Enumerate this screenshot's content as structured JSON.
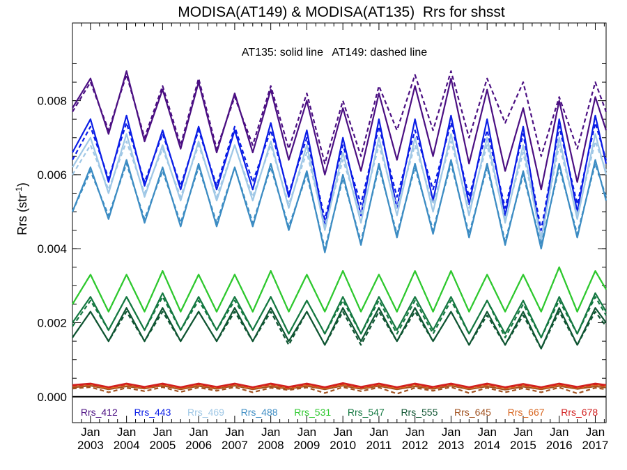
{
  "chart_data": {
    "type": "line",
    "title": "MODISA(AT149) & MODISA(AT135)  Rrs for shsst",
    "annotation": "AT135: solid line   AT149: dashed line",
    "ylabel": "Rrs (str",
    "ylabel_sup": "-1",
    "ylabel_end": ")",
    "ylim": [
      -0.0007,
      0.0101
    ],
    "xlim": [
      2002.5,
      2017.3
    ],
    "yticks": [
      {
        "value": 0.0,
        "label": "0.000"
      },
      {
        "value": 0.002,
        "label": "0.002"
      },
      {
        "value": 0.004,
        "label": "0.004"
      },
      {
        "value": 0.006,
        "label": "0.006"
      },
      {
        "value": 0.008,
        "label": "0.008"
      }
    ],
    "xticks": [
      {
        "value": 2003,
        "month": "Jan",
        "year": "2003"
      },
      {
        "value": 2004,
        "month": "Jan",
        "year": "2004"
      },
      {
        "value": 2005,
        "month": "Jan",
        "year": "2005"
      },
      {
        "value": 2006,
        "month": "Jan",
        "year": "2006"
      },
      {
        "value": 2007,
        "month": "Jan",
        "year": "2007"
      },
      {
        "value": 2008,
        "month": "Jan",
        "year": "2008"
      },
      {
        "value": 2009,
        "month": "Jan",
        "year": "2009"
      },
      {
        "value": 2010,
        "month": "Jan",
        "year": "2010"
      },
      {
        "value": 2011,
        "month": "Jan",
        "year": "2011"
      },
      {
        "value": 2012,
        "month": "Jan",
        "year": "2012"
      },
      {
        "value": 2013,
        "month": "Jan",
        "year": "2013"
      },
      {
        "value": 2014,
        "month": "Jan",
        "year": "2014"
      },
      {
        "value": 2015,
        "month": "Jan",
        "year": "2015"
      },
      {
        "value": 2016,
        "month": "Jan",
        "year": "2016"
      },
      {
        "value": 2017,
        "month": "Jan",
        "year": "2017"
      }
    ],
    "grid": false,
    "legend_position": "bottom",
    "x": [
      2002.5,
      2003.0,
      2003.5,
      2004.0,
      2004.5,
      2005.0,
      2005.5,
      2006.0,
      2006.5,
      2007.0,
      2007.5,
      2008.0,
      2008.5,
      2009.0,
      2009.5,
      2010.0,
      2010.5,
      2011.0,
      2011.5,
      2012.0,
      2012.5,
      2013.0,
      2013.5,
      2014.0,
      2014.5,
      2015.0,
      2015.5,
      2016.0,
      2016.5,
      2017.0,
      2017.3
    ],
    "series": [
      {
        "name": "Rrs_412",
        "color": "#4b0f82",
        "at135": [
          0.0078,
          0.0086,
          0.0071,
          0.0088,
          0.0069,
          0.0083,
          0.0067,
          0.0085,
          0.0066,
          0.0082,
          0.0066,
          0.0083,
          0.0064,
          0.008,
          0.006,
          0.0078,
          0.0061,
          0.0082,
          0.0064,
          0.0084,
          0.0065,
          0.0086,
          0.0063,
          0.0083,
          0.0061,
          0.0078,
          0.0056,
          0.008,
          0.0058,
          0.0081,
          0.0072
        ],
        "at149": [
          0.0077,
          0.0085,
          0.0072,
          0.0087,
          0.007,
          0.0084,
          0.0068,
          0.0086,
          0.0067,
          0.0081,
          0.0068,
          0.0084,
          0.0067,
          0.0082,
          0.0063,
          0.008,
          0.0065,
          0.0084,
          0.0072,
          0.0087,
          0.0072,
          0.0088,
          0.007,
          0.0086,
          0.0074,
          0.0085,
          0.0065,
          0.0081,
          0.0067,
          0.0085,
          0.0077
        ]
      },
      {
        "name": "Rrs_443",
        "color": "#0a1de6",
        "at135": [
          0.0066,
          0.0075,
          0.0058,
          0.0076,
          0.0057,
          0.0072,
          0.0056,
          0.0073,
          0.0056,
          0.0072,
          0.0056,
          0.0074,
          0.0054,
          0.0072,
          0.0046,
          0.007,
          0.0049,
          0.0075,
          0.0051,
          0.0075,
          0.0053,
          0.0076,
          0.0052,
          0.0075,
          0.0049,
          0.0073,
          0.0042,
          0.0075,
          0.005,
          0.0076,
          0.0063
        ],
        "at149": [
          0.0064,
          0.0073,
          0.0059,
          0.0074,
          0.0058,
          0.0071,
          0.0057,
          0.0072,
          0.0057,
          0.0073,
          0.0058,
          0.0072,
          0.0055,
          0.007,
          0.0048,
          0.0068,
          0.0052,
          0.0073,
          0.0054,
          0.0072,
          0.0056,
          0.0074,
          0.0054,
          0.0072,
          0.0051,
          0.0071,
          0.0045,
          0.0073,
          0.0052,
          0.0074,
          0.0064
        ]
      },
      {
        "name": "Rrs_469",
        "color": "#a0c8e6",
        "at135": [
          0.0062,
          0.007,
          0.0055,
          0.0071,
          0.0054,
          0.0068,
          0.0053,
          0.0069,
          0.0053,
          0.0068,
          0.0053,
          0.0069,
          0.0051,
          0.0068,
          0.0045,
          0.0066,
          0.0047,
          0.007,
          0.0049,
          0.007,
          0.005,
          0.0071,
          0.0049,
          0.007,
          0.0047,
          0.0068,
          0.0042,
          0.007,
          0.0048,
          0.0071,
          0.006
        ],
        "at149": [
          0.006,
          0.0068,
          0.0056,
          0.0069,
          0.0055,
          0.0067,
          0.0054,
          0.0068,
          0.0054,
          0.0068,
          0.0054,
          0.0068,
          0.0052,
          0.0066,
          0.0046,
          0.0064,
          0.0049,
          0.0068,
          0.0051,
          0.0068,
          0.0052,
          0.0069,
          0.0051,
          0.0068,
          0.0048,
          0.0066,
          0.0043,
          0.0068,
          0.0049,
          0.0069,
          0.0061
        ]
      },
      {
        "name": "Rrs_488",
        "color": "#3c8cc3",
        "at135": [
          0.005,
          0.0062,
          0.0048,
          0.0064,
          0.0047,
          0.0062,
          0.0046,
          0.0063,
          0.0046,
          0.0062,
          0.0046,
          0.0063,
          0.0045,
          0.0061,
          0.0039,
          0.006,
          0.0041,
          0.0063,
          0.0043,
          0.0063,
          0.0044,
          0.0064,
          0.0043,
          0.0063,
          0.0041,
          0.0061,
          0.004,
          0.0063,
          0.0043,
          0.0064,
          0.0053
        ],
        "at149": [
          0.005,
          0.0061,
          0.0049,
          0.0063,
          0.0048,
          0.0061,
          0.0047,
          0.0062,
          0.0047,
          0.0062,
          0.0047,
          0.0062,
          0.0046,
          0.006,
          0.004,
          0.0059,
          0.0042,
          0.0062,
          0.0044,
          0.0062,
          0.0045,
          0.0063,
          0.0044,
          0.0062,
          0.0042,
          0.006,
          0.0041,
          0.0062,
          0.0044,
          0.0063,
          0.0054
        ]
      },
      {
        "name": "Rrs_531",
        "color": "#2ec82e",
        "at135": [
          0.0025,
          0.0033,
          0.0023,
          0.0033,
          0.0023,
          0.0034,
          0.0023,
          0.0033,
          0.0023,
          0.0033,
          0.0023,
          0.0034,
          0.0023,
          0.0033,
          0.0023,
          0.0034,
          0.0023,
          0.0033,
          0.0023,
          0.0034,
          0.0023,
          0.0034,
          0.0023,
          0.0033,
          0.0023,
          0.0033,
          0.0023,
          0.0035,
          0.0023,
          0.0034,
          0.0029
        ],
        "at149": [
          0.0025,
          0.0033,
          0.0023,
          0.0033,
          0.0023,
          0.0034,
          0.0023,
          0.0033,
          0.0023,
          0.0033,
          0.0023,
          0.0034,
          0.0023,
          0.0033,
          0.0023,
          0.0034,
          0.0023,
          0.0033,
          0.0023,
          0.0034,
          0.0023,
          0.0034,
          0.0023,
          0.0033,
          0.0023,
          0.0033,
          0.0023,
          0.0035,
          0.0023,
          0.0034,
          0.0029
        ]
      },
      {
        "name": "Rrs_547",
        "color": "#147841",
        "at135": [
          0.002,
          0.0027,
          0.0018,
          0.0027,
          0.0018,
          0.0028,
          0.0018,
          0.0027,
          0.0018,
          0.0027,
          0.0018,
          0.0027,
          0.0017,
          0.0026,
          0.0017,
          0.0027,
          0.0017,
          0.0027,
          0.0018,
          0.0027,
          0.0018,
          0.0027,
          0.0017,
          0.0026,
          0.0017,
          0.0026,
          0.0016,
          0.0027,
          0.0017,
          0.0028,
          0.0023
        ],
        "at149": [
          0.0019,
          0.0026,
          0.0018,
          0.0027,
          0.0018,
          0.0027,
          0.0018,
          0.0026,
          0.0018,
          0.0026,
          0.0018,
          0.0027,
          0.0017,
          0.0026,
          0.0017,
          0.0026,
          0.0017,
          0.0026,
          0.0017,
          0.0026,
          0.0017,
          0.0026,
          0.0017,
          0.0026,
          0.0016,
          0.0025,
          0.0016,
          0.0026,
          0.0017,
          0.0027,
          0.0022
        ]
      },
      {
        "name": "Rrs_555",
        "color": "#0f5532",
        "at135": [
          0.0016,
          0.0023,
          0.0015,
          0.0024,
          0.0015,
          0.0024,
          0.0015,
          0.0023,
          0.0015,
          0.0024,
          0.0015,
          0.0024,
          0.0015,
          0.0023,
          0.0014,
          0.0024,
          0.0015,
          0.0024,
          0.0015,
          0.0024,
          0.0015,
          0.0023,
          0.0014,
          0.0023,
          0.0014,
          0.0023,
          0.0013,
          0.0024,
          0.0014,
          0.0024,
          0.002
        ],
        "at149": [
          0.0016,
          0.0023,
          0.0015,
          0.0023,
          0.0015,
          0.0023,
          0.0015,
          0.0023,
          0.0015,
          0.0023,
          0.0015,
          0.0023,
          0.0014,
          0.0023,
          0.0014,
          0.0023,
          0.0014,
          0.0023,
          0.0015,
          0.0023,
          0.0015,
          0.0023,
          0.0014,
          0.0022,
          0.0014,
          0.0022,
          0.0013,
          0.0023,
          0.0014,
          0.0023,
          0.0019
        ]
      },
      {
        "name": "Rrs_645",
        "color": "#a0501e",
        "at135": [
          0.00025,
          0.0003,
          0.0002,
          0.00028,
          0.00022,
          0.0003,
          0.0002,
          0.00029,
          0.00021,
          0.0003,
          0.0002,
          0.00028,
          0.00021,
          0.00029,
          0.0002,
          0.0003,
          0.00021,
          0.00029,
          0.0002,
          0.00028,
          0.00021,
          0.0003,
          0.0002,
          0.00028,
          0.00019,
          0.00027,
          0.0002,
          0.00029,
          0.00021,
          0.00028,
          0.00025
        ],
        "at149": [
          0.00022,
          0.00026,
          0.00012,
          0.00024,
          0.00015,
          0.00026,
          0.00013,
          0.00025,
          0.00016,
          0.00026,
          0.00012,
          0.00024,
          0.00018,
          0.00025,
          0.0001,
          0.00026,
          0.00015,
          0.00025,
          8e-05,
          0.00024,
          0.00016,
          0.00026,
          0.0001,
          0.00024,
          0.00012,
          0.00023,
          0.00012,
          0.00025,
          9e-05,
          0.00024,
          0.0002
        ]
      },
      {
        "name": "Rrs_667",
        "color": "#d7641e",
        "at135": [
          0.0003,
          0.00034,
          0.00024,
          0.00033,
          0.00025,
          0.00034,
          0.00024,
          0.00033,
          0.00025,
          0.00034,
          0.00024,
          0.00033,
          0.00025,
          0.00033,
          0.00024,
          0.00034,
          0.00025,
          0.00033,
          0.00024,
          0.00033,
          0.00025,
          0.00034,
          0.00024,
          0.00033,
          0.00024,
          0.00032,
          0.00024,
          0.00033,
          0.00025,
          0.00033,
          0.0003
        ],
        "at149": [
          0.00028,
          0.00032,
          0.00022,
          0.00031,
          0.00023,
          0.00032,
          0.00022,
          0.00031,
          0.00023,
          0.00032,
          0.00022,
          0.00031,
          0.00023,
          0.00031,
          0.00022,
          0.00032,
          0.00023,
          0.00031,
          0.00022,
          0.00031,
          0.00023,
          0.00032,
          0.00022,
          0.00031,
          0.00022,
          0.0003,
          0.00022,
          0.00031,
          0.00023,
          0.00031,
          0.00028
        ]
      },
      {
        "name": "Rrs_678",
        "color": "#d21e1e",
        "at135": [
          0.00032,
          0.00036,
          0.00026,
          0.00036,
          0.00027,
          0.00036,
          0.00026,
          0.00036,
          0.00027,
          0.00036,
          0.00026,
          0.00036,
          0.00027,
          0.00036,
          0.00026,
          0.00037,
          0.00027,
          0.00036,
          0.00026,
          0.00036,
          0.00027,
          0.00036,
          0.00026,
          0.00036,
          0.00026,
          0.00035,
          0.00026,
          0.00036,
          0.00027,
          0.00036,
          0.00032
        ],
        "at149": [
          0.0003,
          0.00034,
          0.00025,
          0.00034,
          0.00025,
          0.00034,
          0.00025,
          0.00034,
          0.00025,
          0.00034,
          0.00025,
          0.00034,
          0.00025,
          0.00034,
          0.00025,
          0.00035,
          0.00025,
          0.00034,
          0.00025,
          0.00034,
          0.00025,
          0.00034,
          0.00025,
          0.00034,
          0.00025,
          0.00033,
          0.00025,
          0.00034,
          0.00025,
          0.00034,
          0.0003
        ]
      }
    ]
  }
}
